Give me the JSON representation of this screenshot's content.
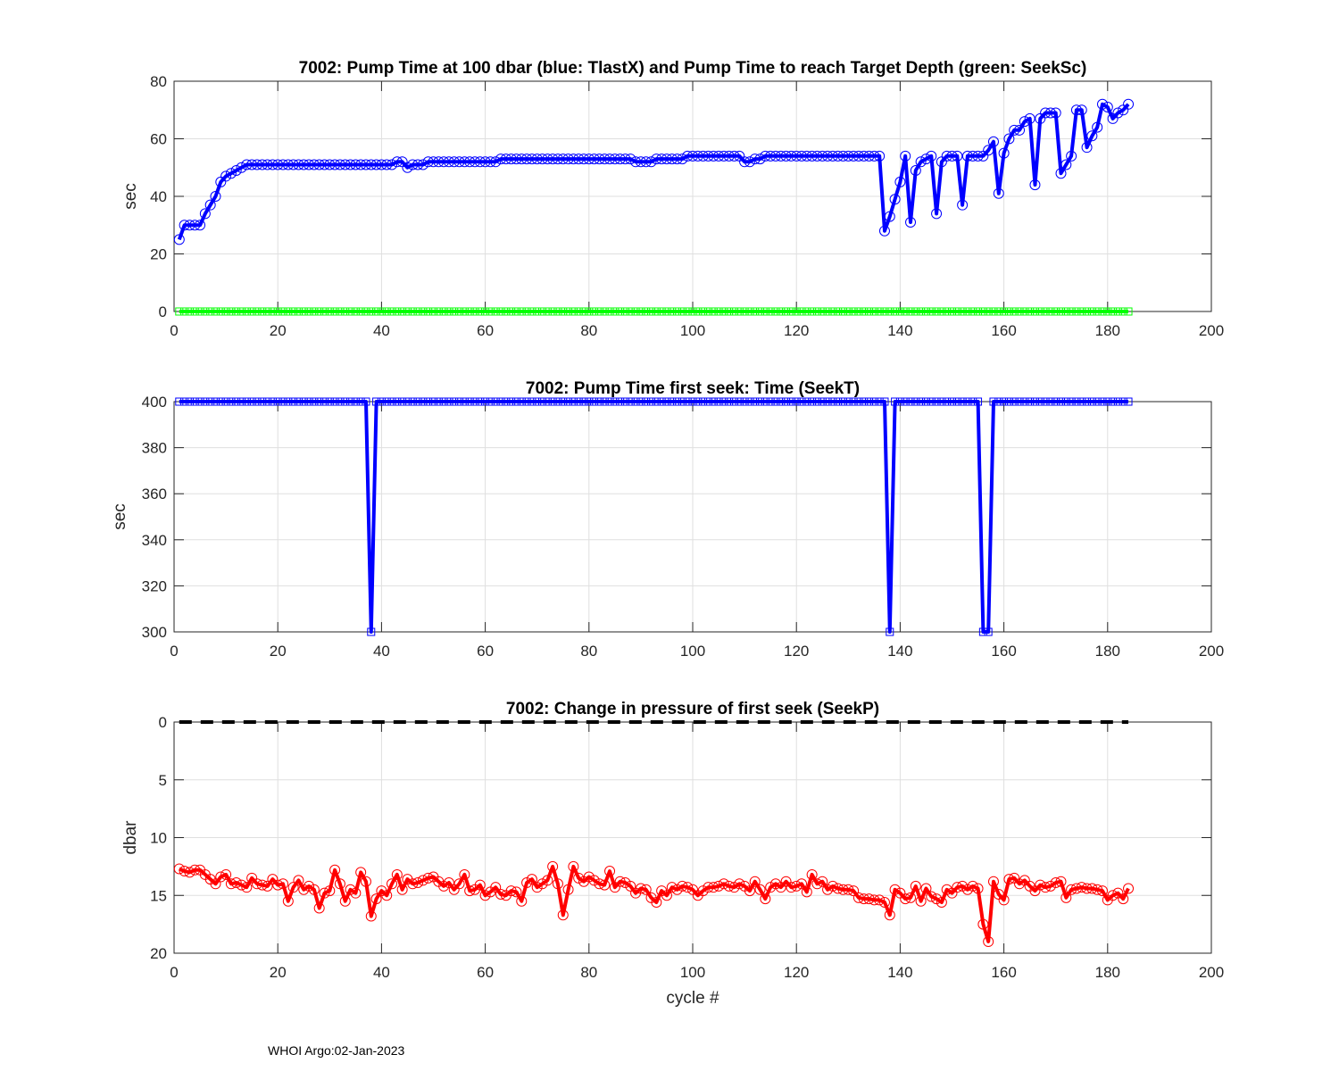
{
  "footer": "WHOI Argo:02-Jan-2023",
  "chart_data": [
    {
      "type": "line",
      "title": "7002:  Pump Time at 100 dbar (blue: TlastX) and Pump Time to reach Target Depth (green: SeekSc)",
      "xlabel": "",
      "ylabel": "sec",
      "xlim": [
        0,
        200
      ],
      "ylim": [
        0,
        80
      ],
      "xticks": [
        0,
        20,
        40,
        60,
        80,
        100,
        120,
        140,
        160,
        180,
        200
      ],
      "yticks": [
        0,
        20,
        40,
        60,
        80
      ],
      "grid": true,
      "series": [
        {
          "name": "TlastX",
          "color": "#0000ff",
          "marker": "circle",
          "x_start": 1,
          "values": [
            25,
            30,
            30,
            30,
            30,
            34,
            37,
            40,
            45,
            47,
            48,
            49,
            50,
            51,
            51,
            51,
            51,
            51,
            51,
            51,
            51,
            51,
            51,
            51,
            51,
            51,
            51,
            51,
            51,
            51,
            51,
            51,
            51,
            51,
            51,
            51,
            51,
            51,
            51,
            51,
            51,
            51,
            52,
            52,
            50,
            51,
            51,
            51,
            52,
            52,
            52,
            52,
            52,
            52,
            52,
            52,
            52,
            52,
            52,
            52,
            52,
            52,
            53,
            53,
            53,
            53,
            53,
            53,
            53,
            53,
            53,
            53,
            53,
            53,
            53,
            53,
            53,
            53,
            53,
            53,
            53,
            53,
            53,
            53,
            53,
            53,
            53,
            53,
            52,
            52,
            52,
            52,
            53,
            53,
            53,
            53,
            53,
            53,
            54,
            54,
            54,
            54,
            54,
            54,
            54,
            54,
            54,
            54,
            54,
            52,
            52,
            53,
            53,
            54,
            54,
            54,
            54,
            54,
            54,
            54,
            54,
            54,
            54,
            54,
            54,
            54,
            54,
            54,
            54,
            54,
            54,
            54,
            54,
            54,
            54,
            54,
            28,
            33,
            39,
            45,
            54,
            31,
            49,
            52,
            53,
            54,
            34,
            52,
            54,
            54,
            54,
            37,
            54,
            54,
            54,
            54,
            56,
            59,
            41,
            55,
            60,
            63,
            63,
            66,
            67,
            44,
            67,
            69,
            69,
            69,
            48,
            51,
            54,
            70,
            70,
            57,
            61,
            64,
            72,
            71,
            67,
            69,
            70,
            72
          ]
        },
        {
          "name": "SeekSc",
          "color": "#00ff00",
          "marker": "square",
          "x_start": 1,
          "constant": 0,
          "count": 184
        }
      ]
    },
    {
      "type": "line",
      "title": "7002: Pump Time first seek: Time (SeekT)",
      "xlabel": "",
      "ylabel": "sec",
      "xlim": [
        0,
        200
      ],
      "ylim": [
        300,
        400
      ],
      "xticks": [
        0,
        20,
        40,
        60,
        80,
        100,
        120,
        140,
        160,
        180,
        200
      ],
      "yticks": [
        300,
        320,
        340,
        360,
        380,
        400
      ],
      "grid": true,
      "series": [
        {
          "name": "SeekT",
          "color": "#0000ff",
          "marker": "square",
          "x_start": 1,
          "constant": 400,
          "count": 184,
          "exceptions": {
            "38": 300,
            "138": 300,
            "156": 300,
            "157": 300
          }
        }
      ]
    },
    {
      "type": "line",
      "title": "7002: Change in pressure of first seek (SeekP)",
      "xlabel": "cycle #",
      "ylabel": "dbar",
      "xlim": [
        0,
        200
      ],
      "ylim": [
        0,
        20
      ],
      "y_reversed": true,
      "xticks": [
        0,
        20,
        40,
        60,
        80,
        100,
        120,
        140,
        160,
        180,
        200
      ],
      "yticks": [
        0,
        5,
        10,
        15,
        20
      ],
      "grid": true,
      "reference_line": {
        "value": 0,
        "style": "dashed",
        "color": "#000000"
      },
      "series": [
        {
          "name": "SeekP",
          "color": "#ff0000",
          "marker": "circle",
          "x_start": 1,
          "values": [
            12.7,
            12.9,
            13.0,
            12.8,
            12.8,
            13.2,
            13.6,
            14.0,
            13.4,
            13.2,
            14.0,
            13.9,
            14.1,
            14.3,
            13.5,
            14.0,
            14.1,
            14.2,
            13.6,
            14.1,
            14.0,
            15.5,
            14.3,
            13.7,
            14.5,
            14.2,
            14.5,
            16.1,
            14.8,
            14.6,
            12.8,
            14.0,
            15.5,
            14.5,
            14.8,
            13.0,
            13.8,
            16.8,
            15.3,
            14.6,
            15.0,
            14.0,
            13.2,
            14.5,
            13.6,
            14.0,
            13.9,
            13.7,
            13.5,
            13.4,
            13.8,
            14.2,
            13.9,
            14.5,
            14.0,
            13.2,
            14.6,
            14.5,
            14.1,
            15.0,
            14.7,
            14.3,
            14.9,
            15.0,
            14.6,
            14.7,
            15.5,
            13.9,
            13.6,
            14.3,
            14.0,
            13.7,
            12.5,
            14.0,
            16.7,
            14.5,
            12.5,
            13.5,
            13.8,
            13.4,
            13.7,
            14.0,
            14.1,
            12.9,
            14.3,
            13.8,
            13.9,
            14.2,
            14.8,
            14.4,
            14.5,
            15.2,
            15.6,
            14.6,
            15.0,
            14.3,
            14.5,
            14.2,
            14.3,
            14.5,
            15.0,
            14.6,
            14.3,
            14.3,
            14.2,
            14.0,
            14.2,
            14.3,
            14.0,
            14.2,
            14.6,
            13.8,
            14.5,
            15.3,
            14.3,
            14.0,
            14.3,
            13.8,
            14.3,
            14.2,
            14.0,
            14.7,
            13.2,
            14.0,
            13.8,
            14.5,
            14.2,
            14.4,
            14.5,
            14.5,
            14.6,
            15.2,
            15.3,
            15.3,
            15.4,
            15.4,
            15.6,
            16.7,
            14.5,
            14.8,
            15.3,
            15.2,
            14.2,
            15.5,
            14.4,
            15.1,
            15.3,
            15.6,
            14.5,
            14.8,
            14.3,
            14.2,
            14.5,
            14.2,
            14.4,
            17.5,
            19.0,
            13.8,
            14.9,
            15.4,
            13.6,
            13.5,
            14.0,
            13.7,
            14.2,
            14.6,
            14.1,
            14.3,
            14.2,
            13.9,
            13.8,
            15.2,
            14.5,
            14.4,
            14.3,
            14.4,
            14.4,
            14.5,
            14.6,
            15.4,
            15.0,
            14.8,
            15.3,
            14.4
          ]
        }
      ]
    }
  ]
}
